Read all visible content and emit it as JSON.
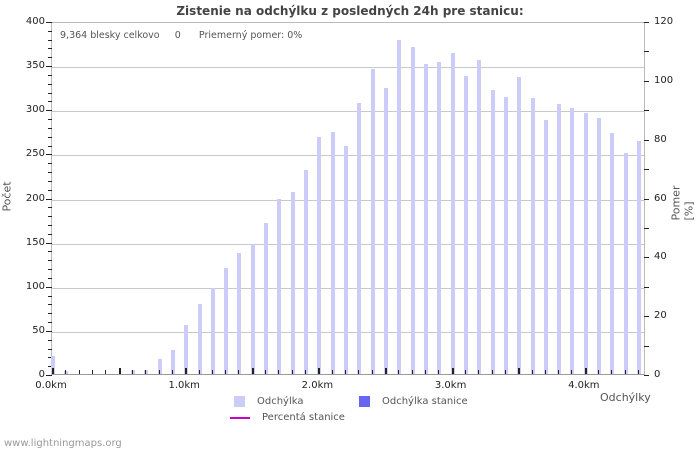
{
  "chart_data": {
    "type": "bar",
    "title": "Zistenie na odchýlku z posledných 24h pre stanicu:",
    "xlabel": "Odchýlky",
    "ylabel": "Počet",
    "ylabel_right": "Pomer [%]",
    "ylim": [
      0,
      400
    ],
    "ylim_right": [
      0,
      120
    ],
    "yticks": [
      0,
      50,
      100,
      150,
      200,
      250,
      300,
      350,
      400
    ],
    "yticks_right": [
      0,
      20,
      40,
      60,
      80,
      100,
      120
    ],
    "xticks": [
      "0.0km",
      "1.0km",
      "2.0km",
      "3.0km",
      "4.0km"
    ],
    "grid": true,
    "legend_position": "bottom",
    "categories": [
      "0.0",
      "0.1",
      "0.2",
      "0.3",
      "0.4",
      "0.5",
      "0.6",
      "0.7",
      "0.8",
      "0.9",
      "1.0",
      "1.1",
      "1.2",
      "1.3",
      "1.4",
      "1.5",
      "1.6",
      "1.7",
      "1.8",
      "1.9",
      "2.0",
      "2.1",
      "2.2",
      "2.3",
      "2.4",
      "2.5",
      "2.6",
      "2.7",
      "2.8",
      "2.9",
      "3.0",
      "3.1",
      "3.2",
      "3.3",
      "3.4",
      "3.5",
      "3.6",
      "3.7",
      "3.8",
      "3.9",
      "4.0",
      "4.1",
      "4.2",
      "4.3",
      "4.4"
    ],
    "series": [
      {
        "name": "Odchýlka",
        "color": "#ccccf8",
        "values": [
          20,
          3,
          0,
          0,
          0,
          0,
          5,
          5,
          17,
          27,
          55,
          79,
          98,
          120,
          137,
          147,
          171,
          198,
          206,
          231,
          269,
          274,
          258,
          307,
          346,
          324,
          378,
          371,
          351,
          353,
          364,
          338,
          356,
          322,
          314,
          336,
          313,
          288,
          306,
          302,
          296,
          290,
          273,
          250,
          264
        ]
      },
      {
        "name": "Odchýlka stanice",
        "color": "#6666ee",
        "values": [
          0,
          0,
          0,
          0,
          0,
          0,
          0,
          0,
          0,
          0,
          0,
          0,
          0,
          0,
          0,
          0,
          0,
          0,
          0,
          0,
          0,
          0,
          0,
          0,
          0,
          0,
          0,
          0,
          0,
          0,
          0,
          0,
          0,
          0,
          0,
          0,
          0,
          0,
          0,
          0,
          0,
          0,
          0,
          0,
          0
        ]
      },
      {
        "name": "Percentá stanice",
        "color": "#cc00cc",
        "type": "line",
        "values": []
      }
    ],
    "annotations": [
      "9,364 blesky celkovo",
      "0",
      "Priemerný pomer: 0%"
    ]
  },
  "info": {
    "total": "9,364 blesky celkovo",
    "station": "0",
    "ratio": "Priemerný pomer: 0%"
  },
  "legend": {
    "item1": "Odchýlka",
    "item2": "Odchýlka stanice",
    "item3": "Percentá stanice"
  },
  "footer": "www.lightningmaps.org"
}
